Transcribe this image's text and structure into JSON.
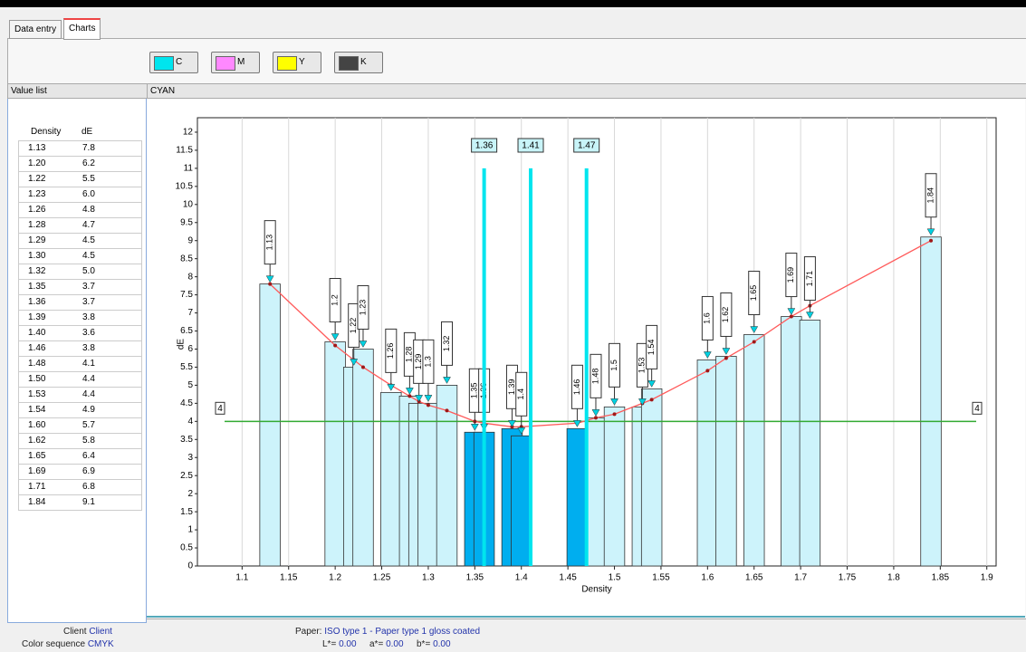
{
  "tabs": [
    "Data entry",
    "Charts"
  ],
  "channels": [
    {
      "label": "C",
      "color": "#00e5ee"
    },
    {
      "label": "M",
      "color": "#ff88ff"
    },
    {
      "label": "Y",
      "color": "#ffff00"
    },
    {
      "label": "K",
      "color": "#444444"
    }
  ],
  "value_list": {
    "title": "Value list",
    "columns": [
      "Density",
      "dE"
    ],
    "rows": [
      [
        "1.13",
        "7.8"
      ],
      [
        "1.20",
        "6.2"
      ],
      [
        "1.22",
        "5.5"
      ],
      [
        "1.23",
        "6.0"
      ],
      [
        "1.26",
        "4.8"
      ],
      [
        "1.28",
        "4.7"
      ],
      [
        "1.29",
        "4.5"
      ],
      [
        "1.30",
        "4.5"
      ],
      [
        "1.32",
        "5.0"
      ],
      [
        "1.35",
        "3.7"
      ],
      [
        "1.36",
        "3.7"
      ],
      [
        "1.39",
        "3.8"
      ],
      [
        "1.40",
        "3.6"
      ],
      [
        "1.46",
        "3.8"
      ],
      [
        "1.48",
        "4.1"
      ],
      [
        "1.50",
        "4.4"
      ],
      [
        "1.53",
        "4.4"
      ],
      [
        "1.54",
        "4.9"
      ],
      [
        "1.60",
        "5.7"
      ],
      [
        "1.62",
        "5.8"
      ],
      [
        "1.65",
        "6.4"
      ],
      [
        "1.69",
        "6.9"
      ],
      [
        "1.71",
        "6.8"
      ],
      [
        "1.84",
        "9.1"
      ]
    ]
  },
  "chart_data": {
    "type": "bar",
    "title": "CYAN",
    "x_label": "Density",
    "y_label": "dE",
    "x": [
      1.13,
      1.2,
      1.22,
      1.23,
      1.26,
      1.28,
      1.29,
      1.3,
      1.32,
      1.35,
      1.36,
      1.39,
      1.4,
      1.46,
      1.48,
      1.5,
      1.53,
      1.54,
      1.6,
      1.62,
      1.65,
      1.69,
      1.71,
      1.84
    ],
    "values": [
      7.8,
      6.2,
      5.5,
      6.0,
      4.8,
      4.7,
      4.5,
      4.5,
      5.0,
      3.7,
      3.7,
      3.8,
      3.6,
      3.8,
      4.1,
      4.4,
      4.4,
      4.9,
      5.7,
      5.8,
      6.4,
      6.9,
      6.8,
      9.1
    ],
    "bar_colors": [
      "#cdf3fb",
      "#cdf3fb",
      "#cdf3fb",
      "#cdf3fb",
      "#cdf3fb",
      "#cdf3fb",
      "#cdf3fb",
      "#cdf3fb",
      "#cdf3fb",
      "#00aeef",
      "#00aeef",
      "#00aeef",
      "#00aeef",
      "#00aeef",
      "#cdf3fb",
      "#cdf3fb",
      "#cdf3fb",
      "#cdf3fb",
      "#cdf3fb",
      "#cdf3fb",
      "#cdf3fb",
      "#cdf3fb",
      "#cdf3fb",
      "#cdf3fb"
    ],
    "fit": {
      "color": "#ff5a5a",
      "values": [
        7.8,
        6.1,
        5.7,
        5.5,
        5.0,
        4.7,
        4.55,
        4.45,
        4.3,
        4.0,
        3.95,
        3.85,
        3.85,
        3.95,
        4.1,
        4.2,
        4.5,
        4.6,
        5.4,
        5.75,
        6.2,
        6.9,
        7.2,
        9.0
      ]
    },
    "threshold": 4,
    "threshold_color": "#33aa33",
    "markers": [
      1.36,
      1.41,
      1.47
    ],
    "marker_top": 11,
    "marker_color": "#00e5ee",
    "xlim": [
      1.052,
      1.91
    ],
    "ylim": [
      0,
      12.4
    ],
    "xticks": [
      1.1,
      1.15,
      1.2,
      1.25,
      1.3,
      1.35,
      1.4,
      1.45,
      1.5,
      1.55,
      1.6,
      1.65,
      1.7,
      1.75,
      1.8,
      1.85,
      1.9
    ],
    "yticks": [
      0,
      0.5,
      1,
      1.5,
      2,
      2.5,
      3,
      3.5,
      4,
      4.5,
      5,
      5.5,
      6,
      6.5,
      7,
      7.5,
      8,
      8.5,
      9,
      9.5,
      10,
      10.5,
      11,
      11.5,
      12
    ],
    "grid": true
  },
  "footer": {
    "client_label": "Client",
    "client": "Client",
    "sequence_label": "Color sequence",
    "sequence": "CMYK",
    "paper_label": "Paper:",
    "paper": "ISO type 1 - Paper type 1 gloss coated",
    "lab": [
      {
        "label": "L*=",
        "value": "0.00"
      },
      {
        "label": "a*=",
        "value": "0.00"
      },
      {
        "label": "b*=",
        "value": "0.00"
      }
    ]
  }
}
